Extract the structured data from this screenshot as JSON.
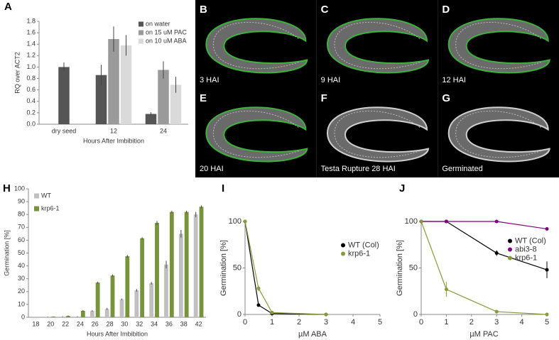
{
  "chart_data": [
    {
      "type": "bar",
      "panel": "A",
      "x_label": "Hours After Imbibition",
      "y_label": "RQ over ACT2",
      "categories": [
        "dry seed",
        "12",
        "24"
      ],
      "series": [
        {
          "name": "on water",
          "color": "#555555",
          "values": [
            1.0,
            0.86,
            0.18
          ],
          "errors": [
            0.08,
            0.18,
            0.03
          ]
        },
        {
          "name": "on 15 uM PAC",
          "color": "#9a9a9a",
          "values": [
            null,
            1.49,
            0.95
          ],
          "errors": [
            null,
            0.22,
            0.15
          ]
        },
        {
          "name": "on 10 uM ABA",
          "color": "#dadada",
          "values": [
            null,
            1.38,
            0.69
          ],
          "errors": [
            null,
            0.18,
            0.14
          ]
        }
      ],
      "ylim": [
        0,
        1.8
      ],
      "yticks": [
        {
          "value": 0,
          "label": "0.0"
        },
        0.2,
        0.4,
        0.6,
        0.8,
        {
          "value": 1,
          "label": "1.0"
        },
        1.2,
        1.4,
        1.6,
        1.8
      ],
      "legend": "upper right"
    },
    {
      "type": "bar",
      "panel": "H",
      "x_label": "Hours After Imbibition",
      "y_label": "Germination [%]",
      "categories": [
        "18",
        "20",
        "22",
        "24",
        "26",
        "28",
        "30",
        "32",
        "34",
        "36",
        "38",
        "42"
      ],
      "series": [
        {
          "name": "WT",
          "color": "#c0c0c0",
          "values": [
            0,
            0.2,
            0.5,
            0.5,
            5,
            6.5,
            14,
            21,
            26.5,
            41,
            65,
            80
          ],
          "errors": [
            0,
            0.2,
            0.3,
            0.3,
            0.5,
            0.7,
            0.6,
            1,
            1,
            3,
            3,
            2
          ]
        },
        {
          "name": "krp6-1",
          "color": "#77933c",
          "values": [
            0,
            0.5,
            1,
            5,
            27,
            32.5,
            47.5,
            61.5,
            73.5,
            82,
            82,
            86
          ],
          "errors": [
            0,
            0.2,
            0.4,
            0.5,
            0.8,
            0.8,
            1,
            0.8,
            1.5,
            1,
            1,
            1
          ]
        }
      ],
      "ylim": [
        0,
        100
      ],
      "yticks": [
        0,
        10,
        20,
        30,
        40,
        50,
        60,
        70,
        80,
        90,
        100
      ],
      "legend": "upper left"
    },
    {
      "type": "line",
      "panel": "I",
      "x_label": "µM ABA",
      "y_label": "Germination [%]",
      "x": [
        0,
        0.5,
        1,
        3
      ],
      "series": [
        {
          "name": "WT (Col)",
          "color": "#000000",
          "values": [
            100,
            10,
            1,
            0
          ],
          "errors": [
            0,
            1,
            0.5,
            0
          ]
        },
        {
          "name": "krp6-1",
          "color": "#8a9a3a",
          "values": [
            100,
            28,
            2,
            0
          ],
          "errors": [
            0,
            3,
            1,
            0
          ]
        }
      ],
      "xlim": [
        0,
        5
      ],
      "xticks": [
        0,
        1,
        2,
        3,
        4,
        5
      ],
      "ylim": [
        0,
        100
      ],
      "yticks": [
        0,
        50,
        100
      ],
      "legend": "center right"
    },
    {
      "type": "line",
      "panel": "J",
      "x_label": "µM PAC",
      "y_label": "Germination [%]",
      "x": [
        0,
        1,
        3,
        5
      ],
      "series": [
        {
          "name": "WT (Col)",
          "color": "#000000",
          "values": [
            100,
            100,
            66,
            48
          ],
          "errors": [
            0,
            0,
            3,
            9
          ]
        },
        {
          "name": "abi3-8",
          "color": "#800080",
          "values": [
            100,
            100,
            100,
            92
          ],
          "errors": [
            0,
            0,
            0,
            1
          ]
        },
        {
          "name": "krp6-1",
          "color": "#8a9a3a",
          "values": [
            100,
            27,
            3,
            0
          ],
          "errors": [
            0,
            8,
            2,
            0
          ]
        }
      ],
      "xlim": [
        0,
        5
      ],
      "xticks": [
        0,
        1,
        2,
        3,
        4,
        5
      ],
      "ylim": [
        0,
        100
      ],
      "yticks": [
        0,
        50,
        100
      ],
      "legend": "center right"
    }
  ],
  "image_panels": [
    {
      "letter": "B",
      "caption": "3 HAI"
    },
    {
      "letter": "C",
      "caption": "9 HAI"
    },
    {
      "letter": "D",
      "caption": "12 HAI"
    },
    {
      "letter": "E",
      "caption": "20 HAI"
    },
    {
      "letter": "F",
      "caption": "Testa Rupture 28 HAI"
    },
    {
      "letter": "G",
      "caption": "Germinated"
    }
  ]
}
